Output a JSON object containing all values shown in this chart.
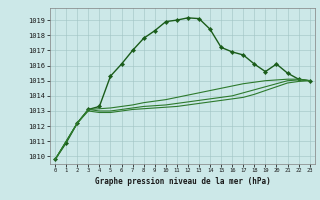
{
  "xlabel": "Graphe pression niveau de la mer (hPa)",
  "xlim": [
    -0.5,
    23.5
  ],
  "ylim": [
    1009.5,
    1019.8
  ],
  "yticks": [
    1010,
    1011,
    1012,
    1013,
    1014,
    1015,
    1016,
    1017,
    1018,
    1019
  ],
  "xticks": [
    0,
    1,
    2,
    3,
    4,
    5,
    6,
    7,
    8,
    9,
    10,
    11,
    12,
    13,
    14,
    15,
    16,
    17,
    18,
    19,
    20,
    21,
    22,
    23
  ],
  "bg_color": "#cce8e8",
  "line_color_dark": "#1a5c1a",
  "line_color_medium": "#2d7a2d",
  "series1_x": [
    0,
    1,
    2,
    3,
    4,
    5,
    6,
    7,
    8,
    9,
    10,
    11,
    12,
    13,
    14,
    15,
    16,
    17,
    18,
    19,
    20,
    21,
    22,
    23
  ],
  "series1_y": [
    1009.8,
    1010.9,
    1012.2,
    1013.1,
    1013.3,
    1015.3,
    1016.1,
    1017.0,
    1017.8,
    1018.3,
    1018.9,
    1019.0,
    1019.15,
    1019.1,
    1018.4,
    1017.2,
    1016.9,
    1016.7,
    1016.1,
    1015.6,
    1016.1,
    1015.5,
    1015.1,
    1015.0
  ],
  "series2_x": [
    0,
    2,
    3,
    4,
    5,
    6,
    7,
    8,
    9,
    10,
    11,
    12,
    13,
    14,
    15,
    16,
    17,
    18,
    19,
    20,
    21,
    22,
    23
  ],
  "series2_y": [
    1009.8,
    1012.2,
    1013.1,
    1013.0,
    1013.0,
    1013.1,
    1013.2,
    1013.3,
    1013.35,
    1013.4,
    1013.5,
    1013.6,
    1013.7,
    1013.8,
    1013.9,
    1014.0,
    1014.2,
    1014.4,
    1014.6,
    1014.8,
    1015.0,
    1015.05,
    1015.0
  ],
  "series3_x": [
    0,
    2,
    3,
    4,
    5,
    6,
    7,
    8,
    9,
    10,
    11,
    12,
    13,
    14,
    15,
    16,
    17,
    18,
    19,
    20,
    21,
    22,
    23
  ],
  "series3_y": [
    1009.8,
    1012.2,
    1013.1,
    1013.15,
    1013.2,
    1013.3,
    1013.4,
    1013.55,
    1013.65,
    1013.75,
    1013.9,
    1014.05,
    1014.2,
    1014.35,
    1014.5,
    1014.65,
    1014.8,
    1014.9,
    1015.0,
    1015.05,
    1015.1,
    1015.1,
    1015.0
  ],
  "series4_x": [
    0,
    2,
    3,
    4,
    5,
    6,
    7,
    8,
    9,
    10,
    11,
    12,
    13,
    14,
    15,
    16,
    17,
    18,
    19,
    20,
    21,
    22,
    23
  ],
  "series4_y": [
    1009.8,
    1012.2,
    1013.0,
    1012.9,
    1012.9,
    1013.0,
    1013.1,
    1013.15,
    1013.2,
    1013.25,
    1013.3,
    1013.4,
    1013.5,
    1013.6,
    1013.7,
    1013.8,
    1013.9,
    1014.1,
    1014.35,
    1014.6,
    1014.85,
    1014.95,
    1015.0
  ]
}
